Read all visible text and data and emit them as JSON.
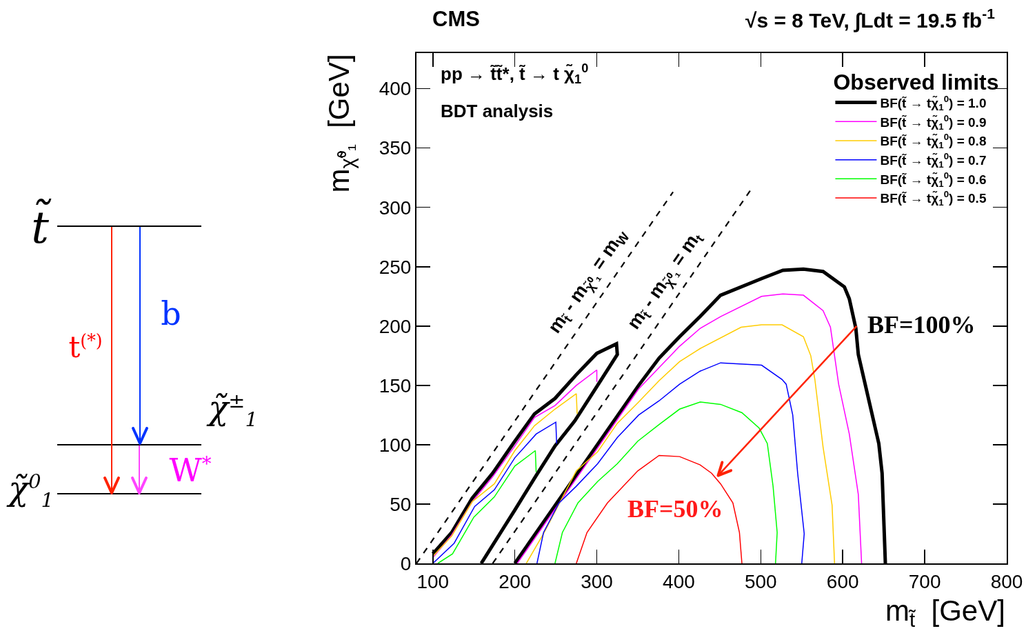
{
  "chart_data": [
    {
      "type": "other",
      "annotations": [
        "t̃",
        "t$^{(*)}$",
        "b",
        "χ̃$^{±}$$_{1}$",
        "W$^{*}$",
        "χ̃$^{0}$$_{1}$"
      ]
    },
    {
      "type": "line",
      "title": "CMS",
      "subtitle": "√s = 8 TeV, ∫Ldt = 19.5 fb$^{-1}$",
      "xlabel": "m$_{t̃}$  [GeV]",
      "ylabel": "m$_{χ̃⁰₁}$  [GeV]",
      "legend_title": "Observed limits",
      "annotations": [
        "pp → t̃t̃*, t̃ → t χ̃$_{1}$$^{0}$",
        "BDT analysis",
        {
          "text": "BF=100%",
          "x": 617,
          "y": 200
        },
        {
          "text": "BF=50%",
          "x": 448,
          "y": 74
        }
      ],
      "xlim": [
        80,
        800
      ],
      "ylim": [
        0,
        430
      ],
      "xticks": [
        100,
        200,
        300,
        400,
        500,
        600,
        700,
        800
      ],
      "yticks": [
        0,
        50,
        100,
        150,
        200,
        250,
        300,
        350,
        400
      ],
      "legend": "top right",
      "marker": "none",
      "grid": false,
      "series": [
        {
          "color": "#000000",
          "x": [
            100,
            123,
            148,
            173,
            199,
            224,
            249,
            275,
            300,
            324,
            325,
            300,
            273,
            249,
            226,
            200,
            159
          ],
          "values": [
            8,
            26,
            55,
            76,
            102,
            126,
            139,
            159,
            177,
            185,
            176,
            149,
            120,
            99,
            74,
            45,
            0
          ]
        },
        {
          "color": "#ff00ff",
          "x": [
            100,
            123,
            148,
            173,
            199,
            224,
            249,
            275,
            300,
            300
          ],
          "values": [
            5,
            24,
            52,
            73,
            98,
            123,
            133,
            150,
            163,
            153
          ]
        },
        {
          "color": "#ffcc00",
          "x": [
            100,
            123,
            148,
            175,
            200,
            224,
            249,
            275,
            276
          ],
          "values": [
            6,
            23,
            52,
            67,
            95,
            116,
            130,
            143,
            126
          ]
        },
        {
          "color": "#0000ff",
          "x": [
            100,
            126,
            151,
            175,
            200,
            226,
            250,
            251
          ],
          "values": [
            0,
            17,
            48,
            62,
            89,
            109,
            119,
            101
          ]
        },
        {
          "color": "#00ff00",
          "x": [
            106,
            124,
            150,
            175,
            200,
            225,
            226
          ],
          "values": [
            0,
            8,
            39,
            56,
            82,
            95,
            77
          ]
        },
        {
          "name": "BF(t̃ → tχ̃$_{1}$$^{0}$) = 1.0",
          "color": "#000000",
          "x": [
            200,
            351,
            376,
            401,
            426,
            451,
            501,
            527,
            552,
            576,
            602,
            608,
            616,
            619,
            627,
            644,
            648,
            652
          ],
          "values": [
            0,
            150,
            173,
            191,
            208,
            226,
            240,
            247,
            248,
            246,
            233,
            223,
            198,
            176,
            152,
            101,
            76,
            0
          ]
        },
        {
          "name": "BF(t̃ → tχ̃$_{1}$$^{0}$) = 0.9",
          "color": "#ff00ff",
          "x": [
            203,
            351,
            401,
            426,
            451,
            501,
            527,
            552,
            576,
            585,
            595,
            608,
            619,
            623
          ],
          "values": [
            0,
            147,
            183,
            198,
            208,
            225,
            227,
            226,
            213,
            199,
            151,
            109,
            58,
            0
          ]
        },
        {
          "name": "BF(t̃ → tχ̃$_{1}$$^{0}$) = 0.8",
          "color": "#ffcc00",
          "x": [
            214,
            235,
            275,
            301,
            325,
            351,
            376,
            401,
            426,
            476,
            501,
            526,
            552,
            561,
            566,
            576,
            587,
            590
          ],
          "values": [
            0,
            25,
            78,
            94,
            118,
            136,
            154,
            170,
            181,
            199,
            201,
            201,
            191,
            175,
            155,
            98,
            49,
            0
          ]
        },
        {
          "name": "BF(t̃ → tχ̃$_{1}$$^{0}$) = 0.7",
          "color": "#0000ff",
          "x": [
            227,
            235,
            254,
            275,
            301,
            325,
            351,
            376,
            401,
            426,
            451,
            501,
            526,
            531,
            539,
            545,
            553,
            550
          ],
          "values": [
            0,
            26,
            51,
            65,
            84,
            106,
            125,
            137,
            151,
            162,
            169,
            167,
            155,
            151,
            125,
            76,
            25,
            0
          ]
        },
        {
          "name": "BF(t̃ → tχ̃$_{1}$$^{0}$) = 0.6",
          "color": "#00ff00",
          "x": [
            249,
            258,
            277,
            301,
            325,
            350,
            376,
            401,
            426,
            451,
            477,
            498,
            508,
            515,
            520,
            518
          ],
          "values": [
            0,
            26,
            51,
            69,
            84,
            103,
            117,
            130,
            136,
            134,
            127,
            114,
            101,
            65,
            26,
            0
          ]
        },
        {
          "name": "BF(t̃ → tχ̃$_{1}$$^{0}$) = 0.5",
          "color": "#ff0000",
          "x": [
            275,
            288,
            313,
            350,
            376,
            401,
            426,
            440,
            451,
            466,
            474,
            477
          ],
          "values": [
            0,
            26,
            51,
            78,
            91,
            90,
            83,
            76,
            67,
            51,
            26,
            0
          ]
        },
        {
          "name": "m$_{t̃}$ - m$_{χ̃⁰₁}$ = m$_{W}$",
          "color": "#000000",
          "line_style": "dashed",
          "x": [
            80,
            393
          ],
          "values": [
            0,
            313
          ]
        },
        {
          "name": "m$_{t̃}$ - m$_{χ̃⁰₁}$ = m$_{t}$",
          "color": "#000000",
          "line_style": "dashed",
          "x": [
            173,
            487
          ],
          "values": [
            0,
            314
          ]
        }
      ]
    }
  ]
}
